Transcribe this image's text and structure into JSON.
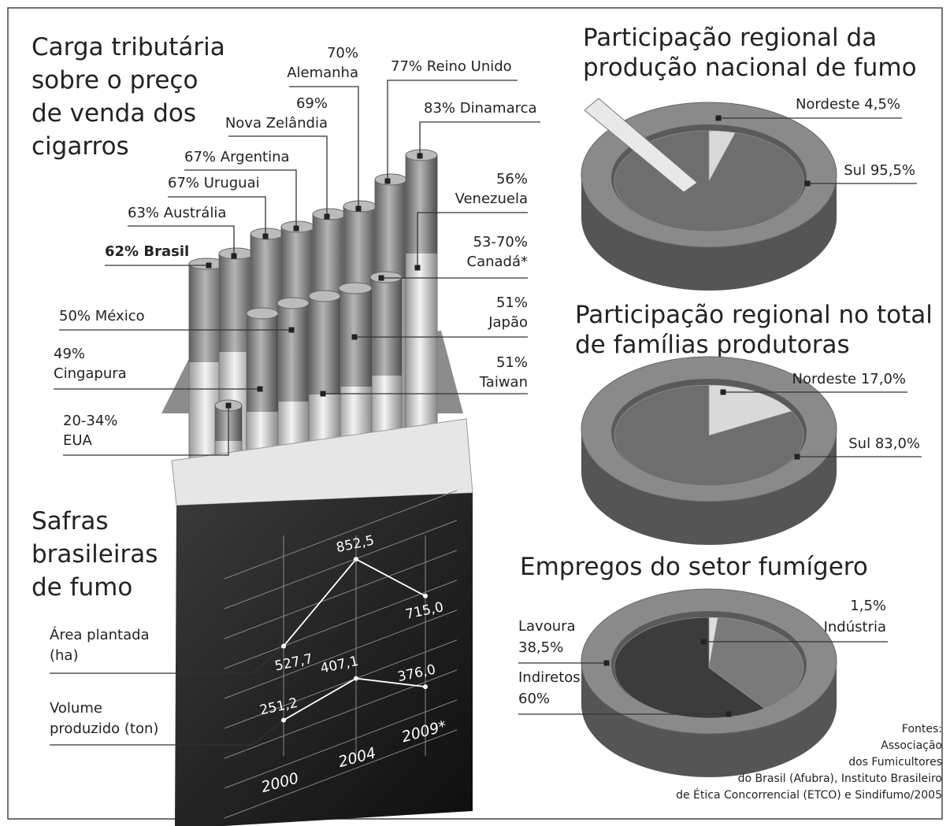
{
  "tax_burden": {
    "title": [
      "Carga tributária",
      "sobre o preço",
      "de venda dos",
      "cigarros"
    ],
    "items": [
      {
        "value": "62%",
        "country": "Brasil"
      },
      {
        "value": "63%",
        "country": "Austrália"
      },
      {
        "value": "67%",
        "country": "Uruguai"
      },
      {
        "value": "67%",
        "country": "Argentina"
      },
      {
        "value": "69%",
        "country": "Nova Zelândia"
      },
      {
        "value": "70%",
        "country": "Alemanha"
      },
      {
        "value": "77%",
        "country": "Reino Unido"
      },
      {
        "value": "83%",
        "country": "Dinamarca"
      },
      {
        "value": "56%",
        "country": "Venezuela"
      },
      {
        "value": "53-70%",
        "country": "Canadá*"
      },
      {
        "value": "51%",
        "country": "Japão"
      },
      {
        "value": "51%",
        "country": "Taiwan"
      },
      {
        "value": "50%",
        "country": "México"
      },
      {
        "value": "49%",
        "country": "Cingapura"
      },
      {
        "value": "20-34%",
        "country": "EUA"
      }
    ]
  },
  "chart_data": [
    {
      "type": "line",
      "title": [
        "Safras",
        "brasileiras",
        "de fumo"
      ],
      "categories": [
        "2000",
        "2004",
        "2009*"
      ],
      "series": [
        {
          "name": [
            "Área plantada",
            "(ha)"
          ],
          "color": "#ffffff",
          "values": [
            527.7,
            852.5,
            715.0
          ],
          "value_labels": [
            "527,7",
            "852,5",
            "715,0"
          ]
        },
        {
          "name": [
            "Volume",
            "produzido (ton)"
          ],
          "color": "#ffffff",
          "values": [
            251.2,
            407.1,
            376.0
          ],
          "value_labels": [
            "251,2",
            "407,1",
            "376,0"
          ]
        }
      ]
    },
    {
      "type": "pie",
      "title": [
        "Participação regional da",
        "produção nacional de fumo"
      ],
      "categories": [
        "Nordeste",
        "Sul"
      ],
      "values": [
        4.5,
        95.5
      ],
      "value_labels": [
        "4,5%",
        "95,5%"
      ],
      "colors": [
        "#d9d9d9",
        "#6e6e6e"
      ]
    },
    {
      "type": "pie",
      "title": [
        "Participação regional no total",
        "de famílias produtoras"
      ],
      "categories": [
        "Nordeste",
        "Sul"
      ],
      "values": [
        17.0,
        83.0
      ],
      "value_labels": [
        "17,0%",
        "83,0%"
      ],
      "colors": [
        "#d9d9d9",
        "#6e6e6e"
      ]
    },
    {
      "type": "pie",
      "title": [
        "Empregos do setor fumígero"
      ],
      "categories": [
        "Indústria",
        "Lavoura",
        "Indiretos"
      ],
      "values": [
        1.5,
        38.5,
        60
      ],
      "value_labels": [
        "1,5%",
        "38,5%",
        "60%"
      ],
      "colors": [
        "#dddddd",
        "#7a7a7a",
        "#3c3c3c"
      ]
    }
  ],
  "sources": [
    "Fontes:",
    "Associação",
    "dos Fumicultores",
    "do Brasil (Afubra), Instituto Brasileiro",
    "de Ética Concorrencial (ETCO) e Sindifumo/2005"
  ]
}
